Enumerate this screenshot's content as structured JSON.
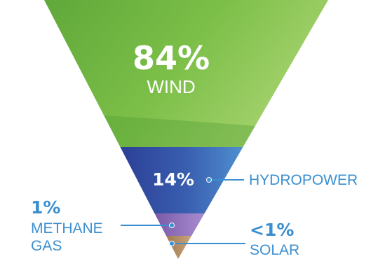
{
  "chart_data": {
    "type": "funnel",
    "title": "",
    "segments": [
      {
        "label": "WIND",
        "value_label": "84%",
        "value": 84,
        "color": "#8cc152"
      },
      {
        "label": "HYDROPOWER",
        "value_label": "14%",
        "value": 14,
        "color": "#3a5fb0"
      },
      {
        "label": "METHANE GAS",
        "label_lines": [
          "METHANE",
          "GAS"
        ],
        "value_label": "1%",
        "value": 1,
        "color": "#9b7bc4"
      },
      {
        "label": "SOLAR",
        "value_label": "<1%",
        "value": 0.5,
        "color": "#b9946a"
      }
    ],
    "colors": {
      "label_blue": "#3b8fd0",
      "connector": "#3b8fd0",
      "wind_text": "#ffffff"
    }
  }
}
